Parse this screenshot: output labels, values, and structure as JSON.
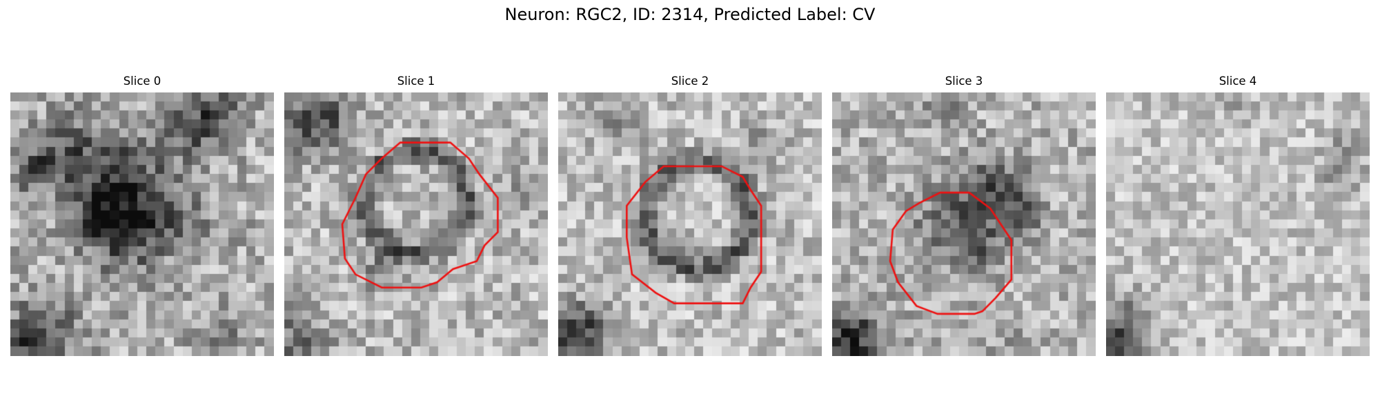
{
  "figure": {
    "title": "Neuron: RGC2, ID: 2314, Predicted Label: CV"
  },
  "slices": [
    {
      "title": "Slice 0",
      "has_contour": false
    },
    {
      "title": "Slice 1",
      "has_contour": true
    },
    {
      "title": "Slice 2",
      "has_contour": true
    },
    {
      "title": "Slice 3",
      "has_contour": true
    },
    {
      "title": "Slice 4",
      "has_contour": false
    }
  ],
  "colors": {
    "contour": "#ee1111",
    "background": "#ffffff"
  }
}
